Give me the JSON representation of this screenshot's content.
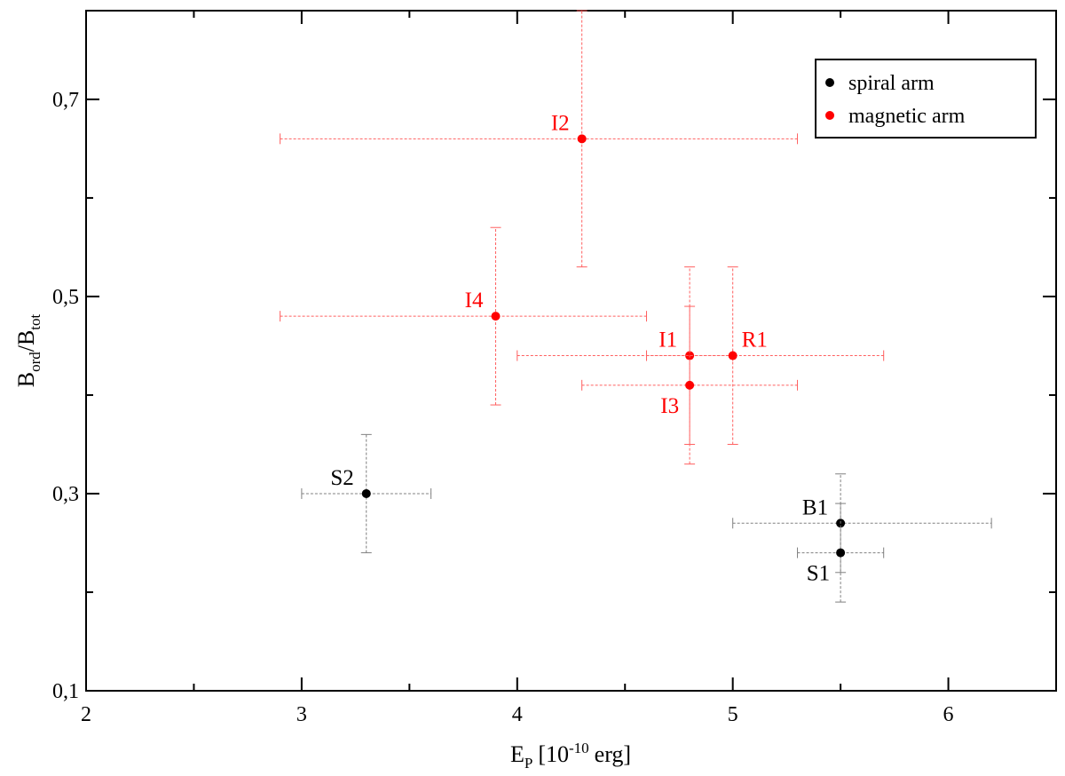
{
  "chart_data": {
    "type": "scatter",
    "xlabel": {
      "main": "E",
      "sub": "P",
      "rest": "[10",
      "sup": "-10",
      "tail": "erg]"
    },
    "ylabel": {
      "part1": "B",
      "sub1": "ord",
      "part2": "/B",
      "sub2": "tot"
    },
    "xlim": [
      2,
      6.5
    ],
    "ylim": [
      0.1,
      0.79
    ],
    "x_ticks": [
      2,
      3,
      4,
      5,
      6
    ],
    "x_tick_labels": [
      "2",
      "3",
      "4",
      "5",
      "6"
    ],
    "y_ticks": [
      0.1,
      0.3,
      0.5,
      0.7
    ],
    "y_tick_labels": [
      "0,1",
      "0,3",
      "0,5",
      "0,7"
    ],
    "grid": false,
    "legend_position": "top-right",
    "series": [
      {
        "name": "spiral arm",
        "color": "#000000",
        "errorbar_color": "#808080",
        "points": [
          {
            "label": "S2",
            "x": 3.3,
            "y": 0.3,
            "xerr": [
              3.0,
              3.6
            ],
            "yerr": [
              0.24,
              0.36
            ],
            "label_pos": "upper-left"
          },
          {
            "label": "B1",
            "x": 5.5,
            "y": 0.27,
            "xerr": [
              5.0,
              6.2
            ],
            "yerr": [
              0.19,
              0.32
            ],
            "label_pos": "upper-left"
          },
          {
            "label": "S1",
            "x": 5.5,
            "y": 0.24,
            "xerr": [
              5.3,
              5.7
            ],
            "yerr": [
              0.22,
              0.29
            ],
            "label_pos": "lower-left"
          }
        ]
      },
      {
        "name": "magnetic arm",
        "color": "#ff0000",
        "errorbar_color": "#ff6060",
        "points": [
          {
            "label": "I2",
            "x": 4.3,
            "y": 0.66,
            "xerr": [
              2.9,
              5.3
            ],
            "yerr": [
              0.53,
              0.79
            ],
            "label_pos": "upper-left"
          },
          {
            "label": "I4",
            "x": 3.9,
            "y": 0.48,
            "xerr": [
              2.9,
              4.6
            ],
            "yerr": [
              0.39,
              0.57
            ],
            "label_pos": "upper-left"
          },
          {
            "label": "I1",
            "x": 4.8,
            "y": 0.44,
            "xerr": [
              4.6,
              5.0
            ],
            "yerr": [
              0.35,
              0.53
            ],
            "label_pos": "upper-left"
          },
          {
            "label": "R1",
            "x": 5.0,
            "y": 0.44,
            "xerr": [
              4.0,
              5.7
            ],
            "yerr": [
              0.35,
              0.53
            ],
            "label_pos": "upper-right"
          },
          {
            "label": "I3",
            "x": 4.8,
            "y": 0.41,
            "xerr": [
              4.3,
              5.3
            ],
            "yerr": [
              0.33,
              0.49
            ],
            "label_pos": "lower-left"
          }
        ]
      }
    ]
  }
}
